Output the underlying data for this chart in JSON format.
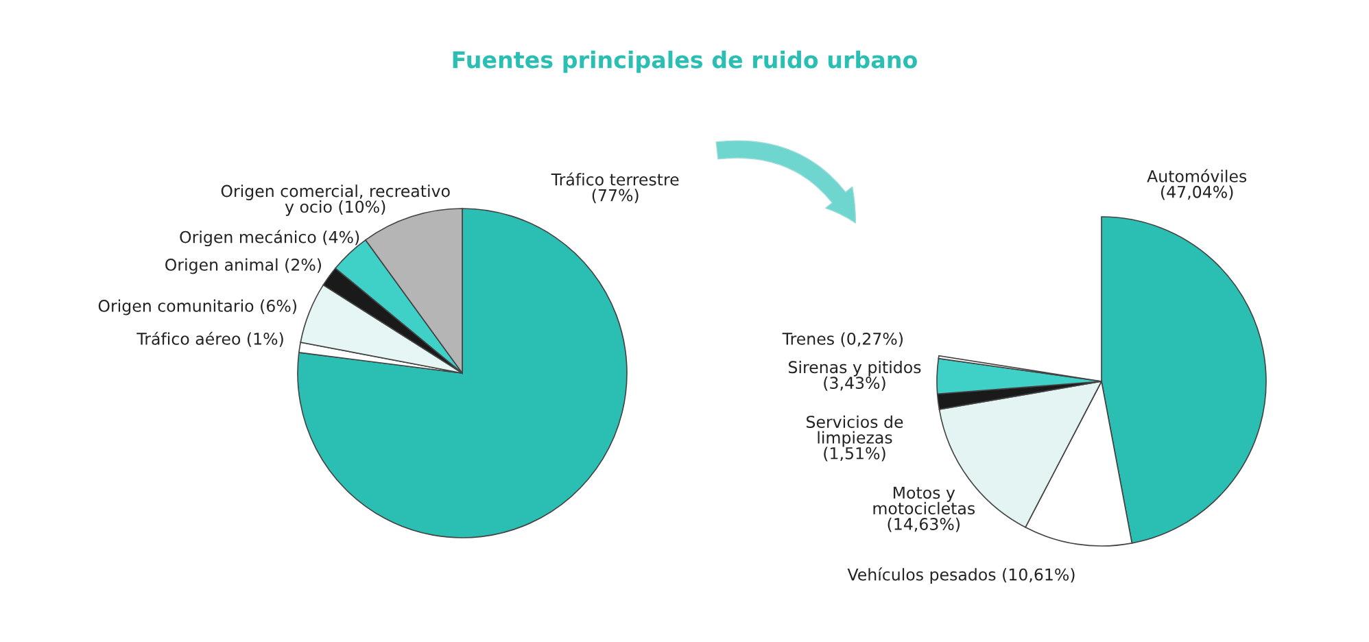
{
  "chart_data": [
    {
      "type": "pie",
      "title": "Fuentes principales de ruido urbano",
      "categories": [
        "Tráfico terrestre",
        "Tráfico aéreo",
        "Origen comunitario",
        "Origen animal",
        "Origen mecánico",
        "Origen comercial, recreativo\ny ocio"
      ],
      "values": [
        77,
        1,
        6,
        2,
        4,
        10
      ],
      "value_labels": [
        "(77%)",
        "(1%)",
        "(6%)",
        "(2%)",
        "(4%)",
        "(10%)"
      ],
      "colors": [
        "#2bbfb3",
        "#ffffff",
        "#e6f6f4",
        "#1a1a1a",
        "#3fd0c8",
        "#b5b5b5"
      ]
    },
    {
      "type": "pie",
      "categories": [
        "Automóviles",
        "Vehículos pesados",
        "Motos y\nmotocicletas",
        "Servicios de\nlimpiezas",
        "Sirenas y pitidos",
        "Trenes"
      ],
      "values": [
        47.04,
        10.61,
        14.63,
        1.51,
        3.43,
        0.27
      ],
      "value_labels": [
        "(47,04%)",
        "(10,61%)",
        "(14,63%)",
        "(1,51%)",
        "(3,43%)",
        "(0,27%)"
      ],
      "colors": [
        "#2bbfb3",
        "#ffffff",
        "#e3f4f2",
        "#1a1a1a",
        "#3fd0c8",
        "#ffffff"
      ]
    }
  ]
}
